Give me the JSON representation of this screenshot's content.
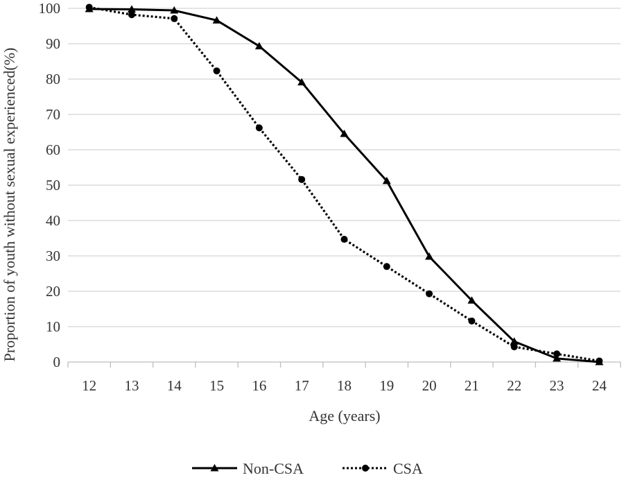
{
  "chart_data": {
    "type": "line",
    "xlabel": "Age (years)",
    "ylabel": "Proportion of youth without sexual experienced(%)",
    "x": [
      12,
      13,
      14,
      15,
      16,
      17,
      18,
      19,
      20,
      21,
      22,
      23,
      24
    ],
    "ylim": [
      0,
      100
    ],
    "yticks": [
      0,
      10,
      20,
      30,
      40,
      50,
      60,
      70,
      80,
      90,
      100
    ],
    "grid": true,
    "legend_position": "bottom",
    "series": [
      {
        "name": "Non-CSA",
        "marker": "triangle",
        "line_style": "solid",
        "color": "#000000",
        "values": [
          99.8,
          99.7,
          99.4,
          96.6,
          89.3,
          79.1,
          64.5,
          51.2,
          29.8,
          17.4,
          5.8,
          1.0,
          0.0
        ]
      },
      {
        "name": "CSA",
        "marker": "circle",
        "line_style": "dotted",
        "color": "#000000",
        "values": [
          100.3,
          98.2,
          97.1,
          82.3,
          66.2,
          51.6,
          34.7,
          27.0,
          19.3,
          11.6,
          4.3,
          2.3,
          0.3
        ]
      }
    ]
  }
}
